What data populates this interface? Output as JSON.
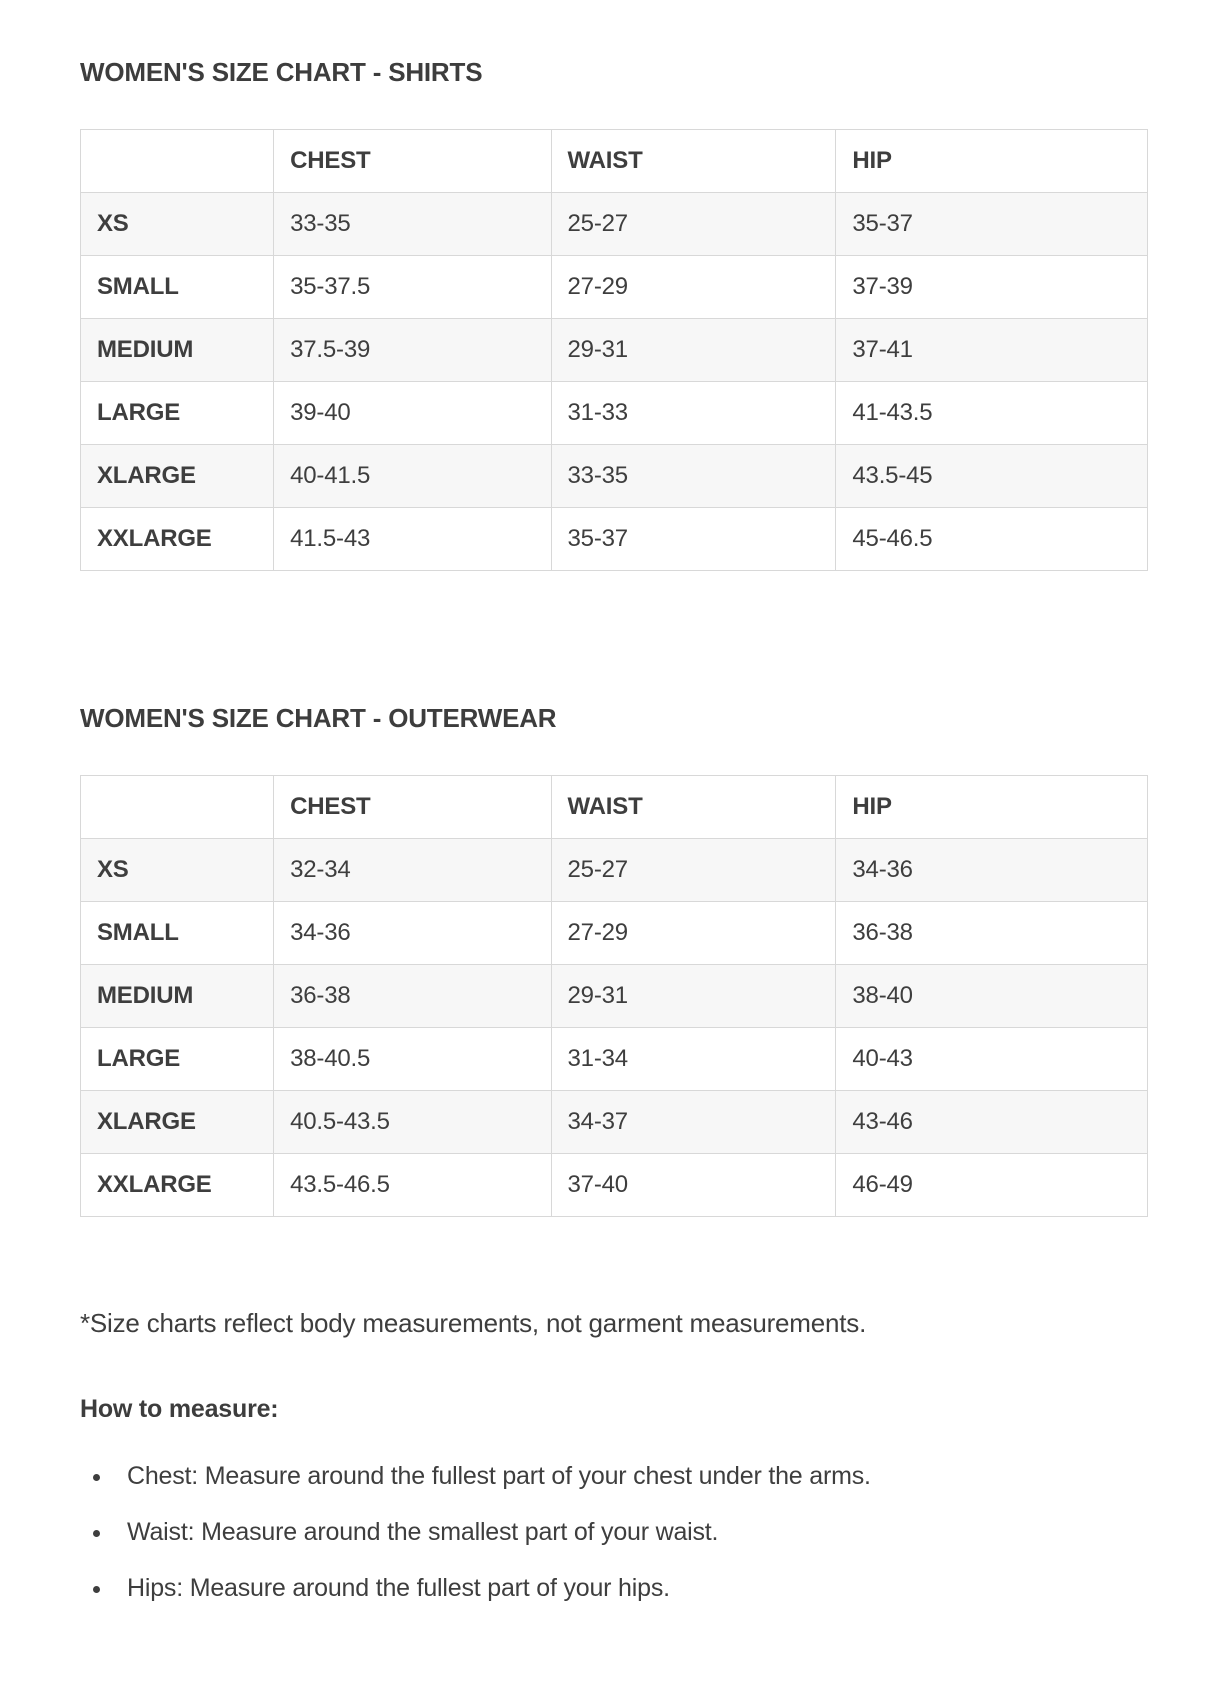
{
  "colors": {
    "background": "#ffffff",
    "text": "#3e3e3e",
    "table_border": "#d8d8d8",
    "row_stripe": "#f7f7f7"
  },
  "tables": [
    {
      "title": "WOMEN'S SIZE CHART - SHIRTS",
      "columns": [
        "",
        "CHEST",
        "WAIST",
        "HIP"
      ],
      "rows": [
        {
          "label": "XS",
          "values": [
            "33-35",
            "25-27",
            "35-37"
          ]
        },
        {
          "label": "SMALL",
          "values": [
            "35-37.5",
            "27-29",
            "37-39"
          ]
        },
        {
          "label": "MEDIUM",
          "values": [
            "37.5-39",
            "29-31",
            "37-41"
          ]
        },
        {
          "label": "LARGE",
          "values": [
            "39-40",
            "31-33",
            "41-43.5"
          ]
        },
        {
          "label": "XLARGE",
          "values": [
            "40-41.5",
            "33-35",
            "43.5-45"
          ]
        },
        {
          "label": "XXLARGE",
          "values": [
            "41.5-43",
            "35-37",
            "45-46.5"
          ]
        }
      ]
    },
    {
      "title": "WOMEN'S SIZE CHART - OUTERWEAR",
      "columns": [
        "",
        "CHEST",
        "WAIST",
        "HIP"
      ],
      "rows": [
        {
          "label": "XS",
          "values": [
            "32-34",
            "25-27",
            "34-36"
          ]
        },
        {
          "label": "SMALL",
          "values": [
            "34-36",
            "27-29",
            "36-38"
          ]
        },
        {
          "label": "MEDIUM",
          "values": [
            "36-38",
            "29-31",
            "38-40"
          ]
        },
        {
          "label": "LARGE",
          "values": [
            "38-40.5",
            "31-34",
            "40-43"
          ]
        },
        {
          "label": "XLARGE",
          "values": [
            "40.5-43.5",
            "34-37",
            "43-46"
          ]
        },
        {
          "label": "XXLARGE",
          "values": [
            "43.5-46.5",
            "37-40",
            "46-49"
          ]
        }
      ]
    }
  ],
  "note": "*Size charts reflect body measurements, not garment measurements.",
  "how_to_measure": {
    "heading": "How to measure:",
    "items": [
      "Chest: Measure around the fullest part of your chest under the arms.",
      "Waist: Measure around the smallest part of your waist.",
      "Hips: Measure around the fullest part of your hips."
    ]
  }
}
